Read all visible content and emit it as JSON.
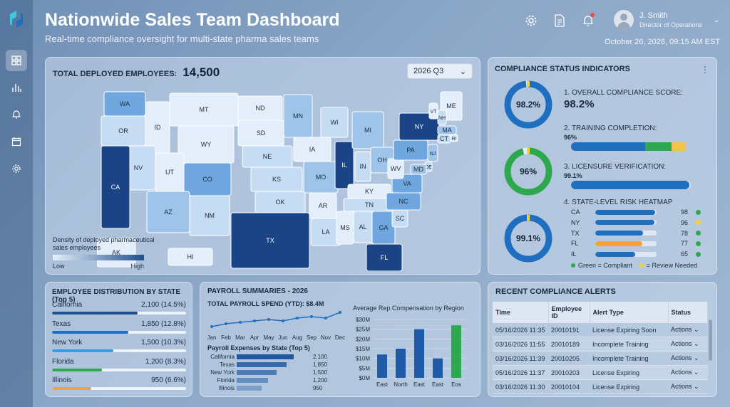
{
  "header": {
    "title": "Nationwide Sales Team Dashboard",
    "subtitle": "Real-time compliance oversight for multi-state pharma sales teams",
    "user_name": "J. Smith",
    "user_role": "Director of Operations",
    "datetime": "October 26, 2026, 09:15 AM EST"
  },
  "sidebar": {
    "icons": [
      "dashboard-icon",
      "bar-chart-icon",
      "bell-icon",
      "calendar-icon",
      "settings-icon"
    ]
  },
  "map": {
    "title": "TOTAL DEPLOYED EMPLOYEES:",
    "total": "14,500",
    "quarter": "2026 Q3",
    "legend_title": "Density of deployed pharmaceutical sales employees",
    "legend_low": "Low",
    "legend_high": "High",
    "states": [
      {
        "abbr": "WA",
        "level": 3
      },
      {
        "abbr": "OR",
        "level": 1
      },
      {
        "abbr": "ID",
        "level": 0
      },
      {
        "abbr": "MT",
        "level": 0
      },
      {
        "abbr": "WY",
        "level": 0
      },
      {
        "abbr": "NV",
        "level": 1
      },
      {
        "abbr": "CA",
        "level": 5
      },
      {
        "abbr": "UT",
        "level": 0
      },
      {
        "abbr": "CO",
        "level": 3
      },
      {
        "abbr": "AZ",
        "level": 2
      },
      {
        "abbr": "NM",
        "level": 1
      },
      {
        "abbr": "ND",
        "level": 0
      },
      {
        "abbr": "SD",
        "level": 0
      },
      {
        "abbr": "NE",
        "level": 1
      },
      {
        "abbr": "KS",
        "level": 1
      },
      {
        "abbr": "OK",
        "level": 1
      },
      {
        "abbr": "TX",
        "level": 5
      },
      {
        "abbr": "MN",
        "level": 2
      },
      {
        "abbr": "IA",
        "level": 0
      },
      {
        "abbr": "MO",
        "level": 2
      },
      {
        "abbr": "AR",
        "level": 0
      },
      {
        "abbr": "LA",
        "level": 1
      },
      {
        "abbr": "WI",
        "level": 1
      },
      {
        "abbr": "IL",
        "level": 5
      },
      {
        "abbr": "MI",
        "level": 2
      },
      {
        "abbr": "IN",
        "level": 1
      },
      {
        "abbr": "OH",
        "level": 2
      },
      {
        "abbr": "KY",
        "level": 0
      },
      {
        "abbr": "TN",
        "level": 1
      },
      {
        "abbr": "MS",
        "level": 0
      },
      {
        "abbr": "AL",
        "level": 1
      },
      {
        "abbr": "GA",
        "level": 3
      },
      {
        "abbr": "FL",
        "level": 5
      },
      {
        "abbr": "SC",
        "level": 1
      },
      {
        "abbr": "NC",
        "level": 3
      },
      {
        "abbr": "VA",
        "level": 3
      },
      {
        "abbr": "WV",
        "level": 0
      },
      {
        "abbr": "PA",
        "level": 3
      },
      {
        "abbr": "NY",
        "level": 5
      },
      {
        "abbr": "ME",
        "level": 0
      },
      {
        "abbr": "VT",
        "level": 0
      },
      {
        "abbr": "NH",
        "level": 1
      },
      {
        "abbr": "MA",
        "level": 2
      },
      {
        "abbr": "RI",
        "level": 0
      },
      {
        "abbr": "CT",
        "level": 1
      },
      {
        "abbr": "NJ",
        "level": 2
      },
      {
        "abbr": "DE",
        "level": 1
      },
      {
        "abbr": "MD",
        "level": 2
      },
      {
        "abbr": "AK",
        "level": 0
      },
      {
        "abbr": "HI",
        "level": 0
      }
    ],
    "level_colors": [
      "#e3eefa",
      "#c6dcf3",
      "#9ec4ea",
      "#6ea6dd",
      "#3e7cc4",
      "#1a4485"
    ]
  },
  "compliance": {
    "title": "COMPLIANCE STATUS INDICATORS",
    "ring1_label": "98.2%",
    "ring1_value": 0.982,
    "ring1_color": "#1f6fc0",
    "ring2_label": "96%",
    "ring2_value": 0.96,
    "ring2_color": "#2da84f",
    "ring3_label": "99.1%",
    "ring3_value": 0.991,
    "ring3_color": "#1f6fc0",
    "m1_title": "1. OVERALL COMPLIANCE SCORE:",
    "m1_value": "98.2%",
    "m2_title": "2. TRAINING COMPLETION:",
    "m2_value": "96%",
    "m2_fill": 0.96,
    "m3_title": "3. LICENSURE VERIFICATION:",
    "m3_value": "99.1%",
    "m3_fill": 0.991,
    "m4_title": "4. STATE-LEVEL RISK HEATMAP",
    "heatmap": [
      {
        "state": "CA",
        "value": "98",
        "fill": 0.98,
        "bar": "#1f6fc0",
        "dot": "#2da84f"
      },
      {
        "state": "NY",
        "value": "96",
        "fill": 0.96,
        "bar": "#1f6fc0",
        "dot": "#f2d23c"
      },
      {
        "state": "TX",
        "value": "78",
        "fill": 0.78,
        "bar": "#1f6fc0",
        "dot": "#2da84f"
      },
      {
        "state": "FL",
        "value": "77",
        "fill": 0.77,
        "bar": "#f2a33c",
        "dot": "#2da84f"
      },
      {
        "state": "IL",
        "value": "65",
        "fill": 0.65,
        "bar": "#1f6fc0",
        "dot": "#2da84f"
      }
    ],
    "legend_green": "Green = Compliant",
    "legend_yellow": "= Review Needed"
  },
  "distribution": {
    "title": "EMPLOYEE DISTRIBUTION BY STATE (Top 5)",
    "items": [
      {
        "state": "California",
        "value": "2,100 (14.5%)",
        "fill": 0.64,
        "color": "#1f4f95"
      },
      {
        "state": "Texas",
        "value": "1,850 (12.8%)",
        "fill": 0.57,
        "color": "#1f6fc0"
      },
      {
        "state": "New York",
        "value": "1,500 (10.3%)",
        "fill": 0.46,
        "color": "#3c9ae0"
      },
      {
        "state": "Florida",
        "value": "1,200 (8.3%)",
        "fill": 0.37,
        "color": "#2da84f"
      },
      {
        "state": "Illinois",
        "value": "950 (6.6%)",
        "fill": 0.29,
        "color": "#f2a33c"
      }
    ]
  },
  "payroll": {
    "title": "PAYROLL SUMMARIES - 2026",
    "total_label": "TOTAL PAYROLL SPEND (YTD): $8.4M",
    "by_state_title": "Payroll Expenses by State (Top 5)",
    "states": [
      {
        "state": "California",
        "value": "2,100",
        "fill": 1.0
      },
      {
        "state": "Texas",
        "value": "1,850",
        "fill": 0.87
      },
      {
        "state": "New York",
        "value": "1,500",
        "fill": 0.7
      },
      {
        "state": "Florida",
        "value": "1,200",
        "fill": 0.55
      },
      {
        "state": "Illinois",
        "value": "950",
        "fill": 0.44
      }
    ],
    "region_title": "Average Rep Compensation by Region"
  },
  "chart_data": [
    {
      "type": "line",
      "x": [
        "Jan",
        "Feb",
        "Mar",
        "Apr",
        "May",
        "Jun",
        "Aug",
        "Sep",
        "Nov",
        "Dec"
      ],
      "values": [
        3,
        5,
        6,
        7,
        8,
        7,
        9,
        10,
        9,
        13
      ]
    },
    {
      "type": "bar",
      "title": "Average Rep Compensation by Region",
      "categories": [
        "East",
        "North",
        "East",
        "East",
        "Eos"
      ],
      "values": [
        12,
        15,
        25,
        10,
        27
      ],
      "colors": [
        "#1f5aa8",
        "#1f5aa8",
        "#1f5aa8",
        "#1f5aa8",
        "#2da84f"
      ],
      "yticks": [
        "$0M",
        "$5M",
        "$10M",
        "$15M",
        "$20M",
        "$25M",
        "$30M"
      ],
      "ylim": [
        0,
        30
      ]
    }
  ],
  "alerts": {
    "title": "RECENT COMPLIANCE ALERTS",
    "columns": [
      "Time",
      "Employee ID",
      "Alert Type",
      "Status"
    ],
    "rows": [
      {
        "time": "05/16/2026 11:35",
        "id": "20010191",
        "type": "License Expiring Soon",
        "status": "Actions"
      },
      {
        "time": "03/16/2026 11:55",
        "id": "20010189",
        "type": "Incomplete Training",
        "status": "Actions"
      },
      {
        "time": "03/16/2026 11:39",
        "id": "20010205",
        "type": "Incomplete Training",
        "status": "Actions"
      },
      {
        "time": "05/16/2026 11:37",
        "id": "20010203",
        "type": "License Expiring",
        "status": "Actions"
      },
      {
        "time": "03/16/2026 11:30",
        "id": "20010104",
        "type": "License Expiring",
        "status": "Actions"
      }
    ]
  }
}
